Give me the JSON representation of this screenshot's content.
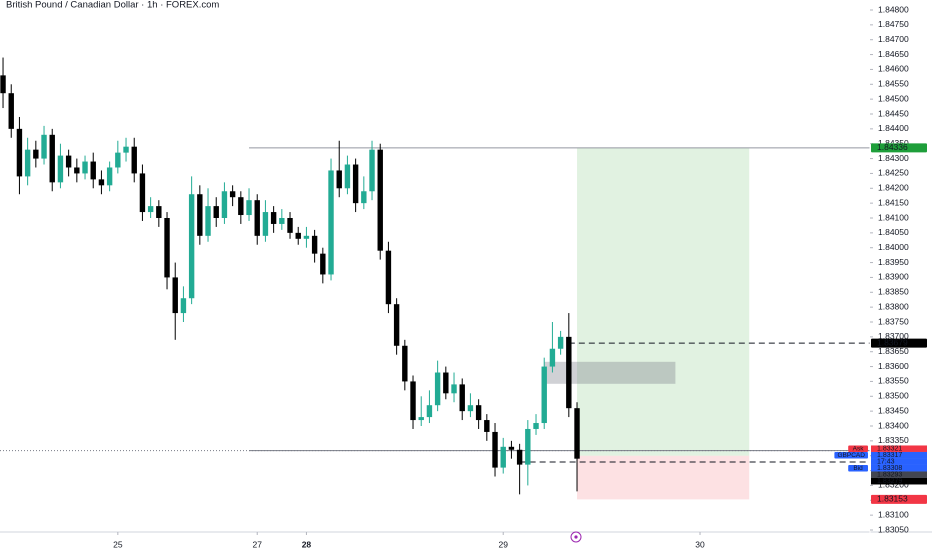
{
  "chart_data": {
    "type": "candlestick",
    "title": "British Pound / Canadian Dollar · 1h · FOREX.com",
    "up_color": "#22ab94",
    "down_color": "#000000",
    "open": [
      1.8458,
      1.8452,
      1.844,
      1.8424,
      1.8433,
      1.843,
      1.8438,
      1.8422,
      1.8431,
      1.8427,
      1.8425,
      1.8429,
      1.8423,
      1.8421,
      1.8427,
      1.8432,
      1.8434,
      1.8425,
      1.8412,
      1.8414,
      1.841,
      1.839,
      1.8378,
      1.8383,
      1.8418,
      1.8404,
      1.8414,
      1.841,
      1.8419,
      1.8417,
      1.8411,
      1.8416,
      1.8404,
      1.8412,
      1.8408,
      1.841,
      1.8405,
      1.8403,
      1.8404,
      1.8398,
      1.8391,
      1.8426,
      1.842,
      1.8428,
      1.8415,
      1.8419,
      1.8433,
      1.8399,
      1.8381,
      1.8367,
      1.8355,
      1.8342,
      1.8343,
      1.8347,
      1.8358,
      1.8351,
      1.8354,
      1.8345,
      1.8347,
      1.8342,
      1.8338,
      1.8326,
      1.8333,
      1.8332,
      1.8327,
      1.8339,
      1.8341,
      1.836,
      1.8366,
      1.837,
      1.8346
    ],
    "high": [
      1.8464,
      1.8455,
      1.8444,
      1.8437,
      1.8436,
      1.8441,
      1.844,
      1.8435,
      1.8433,
      1.843,
      1.8431,
      1.8432,
      1.8426,
      1.8429,
      1.8436,
      1.8437,
      1.8437,
      1.8428,
      1.8417,
      1.8416,
      1.8412,
      1.8395,
      1.8387,
      1.8424,
      1.8421,
      1.842,
      1.8417,
      1.8422,
      1.8421,
      1.8419,
      1.842,
      1.8418,
      1.8416,
      1.8414,
      1.8413,
      1.8412,
      1.8407,
      1.8407,
      1.8406,
      1.84,
      1.843,
      1.8436,
      1.8431,
      1.843,
      1.8424,
      1.8436,
      1.8435,
      1.8402,
      1.8383,
      1.8369,
      1.8357,
      1.835,
      1.8352,
      1.8362,
      1.836,
      1.8358,
      1.8356,
      1.8351,
      1.8349,
      1.8344,
      1.8341,
      1.8336,
      1.8335,
      1.8334,
      1.8342,
      1.8344,
      1.8363,
      1.8375,
      1.8372,
      1.8378,
      1.8348
    ],
    "low": [
      1.8447,
      1.8437,
      1.8418,
      1.8421,
      1.8427,
      1.8428,
      1.8419,
      1.842,
      1.8424,
      1.8422,
      1.8423,
      1.842,
      1.8418,
      1.8419,
      1.8425,
      1.8429,
      1.8422,
      1.8409,
      1.841,
      1.8407,
      1.8386,
      1.8369,
      1.8375,
      1.8381,
      1.8401,
      1.8402,
      1.8407,
      1.8408,
      1.8414,
      1.8408,
      1.8409,
      1.8401,
      1.8402,
      1.8405,
      1.8406,
      1.8403,
      1.8401,
      1.84,
      1.8395,
      1.8388,
      1.8389,
      1.8417,
      1.8418,
      1.8412,
      1.8413,
      1.8416,
      1.8396,
      1.8378,
      1.8364,
      1.8352,
      1.8339,
      1.834,
      1.8341,
      1.8345,
      1.8349,
      1.8348,
      1.8342,
      1.8343,
      1.8339,
      1.8335,
      1.8323,
      1.8324,
      1.8329,
      1.8317,
      1.832,
      1.8337,
      1.8339,
      1.8358,
      1.8364,
      1.8343,
      1.8318
    ],
    "close": [
      1.8452,
      1.844,
      1.8424,
      1.8433,
      1.843,
      1.8438,
      1.8422,
      1.8431,
      1.8427,
      1.8425,
      1.8429,
      1.8423,
      1.8421,
      1.8427,
      1.8432,
      1.8434,
      1.8425,
      1.8412,
      1.8414,
      1.841,
      1.839,
      1.8378,
      1.8383,
      1.8418,
      1.8404,
      1.8414,
      1.841,
      1.8419,
      1.8417,
      1.8411,
      1.8416,
      1.8404,
      1.8412,
      1.8408,
      1.841,
      1.8405,
      1.8403,
      1.8404,
      1.8398,
      1.8391,
      1.8426,
      1.842,
      1.8428,
      1.8415,
      1.8419,
      1.8433,
      1.8399,
      1.8381,
      1.8367,
      1.8355,
      1.8342,
      1.8343,
      1.8347,
      1.8358,
      1.8351,
      1.8354,
      1.8345,
      1.8347,
      1.8342,
      1.8338,
      1.8326,
      1.8333,
      1.8332,
      1.8327,
      1.8339,
      1.8341,
      1.836,
      1.8366,
      1.837,
      1.8346,
      1.8329
    ],
    "xlim": [
      -0.37,
      105.73
    ],
    "xticks": [
      {
        "value": 14,
        "label": "25"
      },
      {
        "value": 31,
        "label": "27"
      },
      {
        "value": 37,
        "label": "28"
      },
      {
        "value": 61,
        "label": "29"
      },
      {
        "value": 85,
        "label": "30"
      }
    ],
    "ylim": [
      1.8305,
      1.848
    ],
    "yticks": [
      {
        "value": 1.848,
        "label": "1.84800"
      },
      {
        "value": 1.8475,
        "label": "1.84750"
      },
      {
        "value": 1.847,
        "label": "1.84700"
      },
      {
        "value": 1.8465,
        "label": "1.84650"
      },
      {
        "value": 1.846,
        "label": "1.84600"
      },
      {
        "value": 1.8455,
        "label": "1.84550"
      },
      {
        "value": 1.845,
        "label": "1.84500"
      },
      {
        "value": 1.8445,
        "label": "1.84450"
      },
      {
        "value": 1.844,
        "label": "1.84400"
      },
      {
        "value": 1.8435,
        "label": "1.84350"
      },
      {
        "value": 1.843,
        "label": "1.84300"
      },
      {
        "value": 1.8425,
        "label": "1.84250"
      },
      {
        "value": 1.842,
        "label": "1.84200"
      },
      {
        "value": 1.8415,
        "label": "1.84150"
      },
      {
        "value": 1.841,
        "label": "1.84100"
      },
      {
        "value": 1.8405,
        "label": "1.84050"
      },
      {
        "value": 1.84,
        "label": "1.84000"
      },
      {
        "value": 1.8395,
        "label": "1.83950"
      },
      {
        "value": 1.839,
        "label": "1.83900"
      },
      {
        "value": 1.8385,
        "label": "1.83850"
      },
      {
        "value": 1.838,
        "label": "1.83800"
      },
      {
        "value": 1.8375,
        "label": "1.83750"
      },
      {
        "value": 1.837,
        "label": "1.83700"
      },
      {
        "value": 1.8365,
        "label": "1.83650"
      },
      {
        "value": 1.836,
        "label": "1.83600"
      },
      {
        "value": 1.8355,
        "label": "1.83550"
      },
      {
        "value": 1.835,
        "label": "1.83500"
      },
      {
        "value": 1.8345,
        "label": "1.83450"
      },
      {
        "value": 1.834,
        "label": "1.83400"
      },
      {
        "value": 1.8335,
        "label": "1.83350"
      },
      {
        "value": 1.833,
        "label": "1.83300"
      },
      {
        "value": 1.8325,
        "label": "1.83250"
      },
      {
        "value": 1.832,
        "label": "1.83200"
      },
      {
        "value": 1.8315,
        "label": "1.83150"
      },
      {
        "value": 1.831,
        "label": "1.83100"
      },
      {
        "value": 1.8305,
        "label": "1.83050"
      }
    ],
    "long_position": {
      "target": 1.84336,
      "entry": 1.833,
      "stop": 1.83153,
      "x_start": 70,
      "x_end": 91
    },
    "zone": {
      "top": 1.83616,
      "bottom": 1.83542,
      "x_start": 66,
      "x_end": 82
    },
    "levels": [
      {
        "value": 1.84336,
        "from": 30,
        "style": "solid",
        "tag_color": "#1e9e3a"
      },
      {
        "value": 1.83679,
        "from": 69,
        "style": "dashed",
        "tag_color": "#000000"
      },
      {
        "value": 1.83153,
        "style": "none",
        "tag_color": "#f23645"
      }
    ],
    "price_tags": [
      {
        "name": "Ask",
        "value": 1.83321,
        "color": "#f23645"
      },
      {
        "name": "GBPCAD",
        "value": 1.83317,
        "countdown": "17:43",
        "color": "#2962ff"
      },
      {
        "name": "Bid",
        "value": 1.83308,
        "color": "#2962ff"
      },
      {
        "value": 1.83293,
        "color": "#434651"
      },
      {
        "value": 1.83279,
        "color": "#000000",
        "line_from": 63
      }
    ]
  }
}
